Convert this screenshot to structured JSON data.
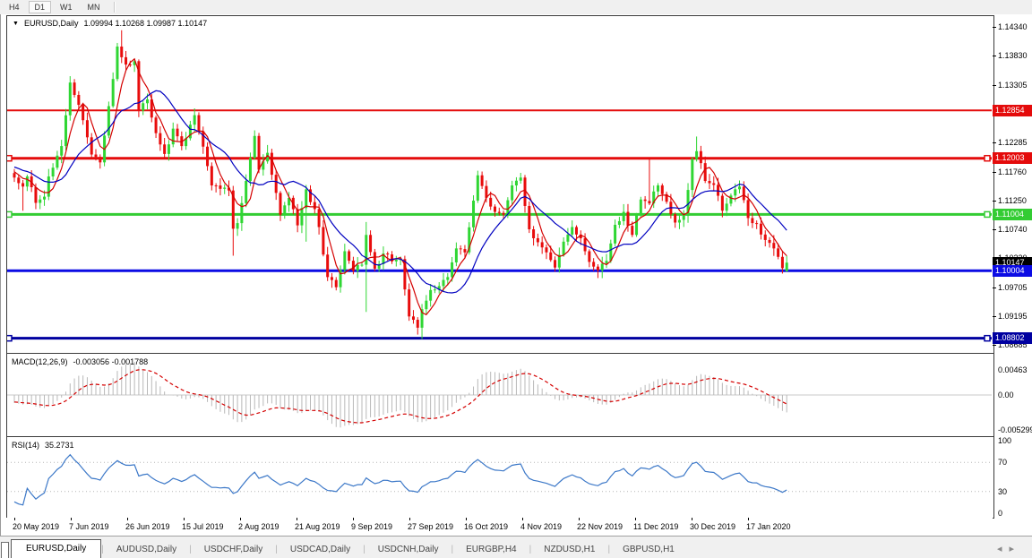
{
  "toolbar": {
    "buttons": [
      "H4",
      "D1",
      "W1",
      "MN"
    ],
    "active": "D1"
  },
  "chart": {
    "title_symbol": "EURUSD,Daily",
    "ohlc_text": "1.09994 1.10268 1.09987 1.10147",
    "dropdown_icon": "▼"
  },
  "price_axis": {
    "ticks": [
      {
        "label": "1.14340",
        "price": 1.1434
      },
      {
        "label": "1.13830",
        "price": 1.1383
      },
      {
        "label": "1.13305",
        "price": 1.13305
      },
      {
        "label": "1.12795",
        "price": 1.12795
      },
      {
        "label": "1.12285",
        "price": 1.12285
      },
      {
        "label": "1.11760",
        "price": 1.1176
      },
      {
        "label": "1.11250",
        "price": 1.1125
      },
      {
        "label": "1.10740",
        "price": 1.1074
      },
      {
        "label": "1.10230",
        "price": 1.1023
      },
      {
        "label": "1.09705",
        "price": 1.09705
      },
      {
        "label": "1.09195",
        "price": 1.09195
      },
      {
        "label": "1.08685",
        "price": 1.08685
      }
    ],
    "badges": [
      {
        "label": "1.12854",
        "price": 1.12854,
        "color": "#e40b0b"
      },
      {
        "label": "1.12003",
        "price": 1.12003,
        "color": "#e40b0b"
      },
      {
        "label": "1.11004",
        "price": 1.11004,
        "color": "#33cc33"
      },
      {
        "label": "1.10147",
        "price": 1.10147,
        "color": "#000000"
      },
      {
        "label": "1.10004",
        "price": 1.10004,
        "color": "#0b0be4"
      },
      {
        "label": "1.08802",
        "price": 1.08802,
        "color": "#0000a0"
      }
    ]
  },
  "indicators": {
    "macd": {
      "label": "MACD(12,26,9)",
      "values": "-0.003056 -0.001788",
      "axis": [
        {
          "label": "0.00463",
          "pos": "top"
        },
        {
          "label": "0.00",
          "pos": "zero"
        },
        {
          "label": "-0.005299",
          "pos": "bottom"
        }
      ]
    },
    "rsi": {
      "label": "RSI(14)",
      "value": "35.2731",
      "axis": [
        {
          "label": "100",
          "v": 100
        },
        {
          "label": "70",
          "v": 70
        },
        {
          "label": "30",
          "v": 30
        },
        {
          "label": "0",
          "v": 0
        }
      ],
      "levels": [
        70,
        30
      ]
    }
  },
  "x_axis": {
    "labels": [
      "20 May 2019",
      "7 Jun 2019",
      "26 Jun 2019",
      "15 Jul 2019",
      "2 Aug 2019",
      "21 Aug 2019",
      "9 Sep 2019",
      "27 Sep 2019",
      "16 Oct 2019",
      "4 Nov 2019",
      "22 Nov 2019",
      "11 Dec 2019",
      "30 Dec 2019",
      "17 Jan 2020"
    ]
  },
  "tabs": {
    "items": [
      "EURUSD,Daily",
      "AUDUSD,Daily",
      "USDCHF,Daily",
      "USDCAD,Daily",
      "USDCNH,Daily",
      "EURGBP,H4",
      "NZDUSD,H1",
      "GBPUSD,H1"
    ],
    "active_index": 0,
    "scroll_left_icon": "◂",
    "scroll_right_icon": "▸"
  },
  "chart_data": {
    "type": "candlestick",
    "symbol": "EURUSD",
    "timeframe": "Daily",
    "bars": 181,
    "last_bar": {
      "open": 1.09994,
      "high": 1.10268,
      "low": 1.09987,
      "close": 1.10147
    },
    "price_range": [
      1.08685,
      1.1434
    ],
    "close_anchors": [
      [
        0,
        1.1166
      ],
      [
        2,
        1.115
      ],
      [
        3,
        1.1168
      ],
      [
        5,
        1.1121
      ],
      [
        7,
        1.1132
      ],
      [
        8,
        1.1168
      ],
      [
        10,
        1.1205
      ],
      [
        11,
        1.1222
      ],
      [
        13,
        1.1335
      ],
      [
        14,
        1.1313
      ],
      [
        16,
        1.1268
      ],
      [
        18,
        1.1207
      ],
      [
        20,
        1.1193
      ],
      [
        22,
        1.1293
      ],
      [
        24,
        1.1399
      ],
      [
        25,
        1.138
      ],
      [
        26,
        1.1367
      ],
      [
        28,
        1.1373
      ],
      [
        29,
        1.1285
      ],
      [
        31,
        1.1305
      ],
      [
        33,
        1.1245
      ],
      [
        35,
        1.1208
      ],
      [
        37,
        1.1253
      ],
      [
        39,
        1.1222
      ],
      [
        41,
        1.126
      ],
      [
        42,
        1.1277
      ],
      [
        44,
        1.1221
      ],
      [
        46,
        1.1152
      ],
      [
        48,
        1.1146
      ],
      [
        50,
        1.1143
      ],
      [
        51,
        1.1075
      ],
      [
        52,
        1.1085
      ],
      [
        54,
        1.116
      ],
      [
        55,
        1.1201
      ],
      [
        56,
        1.124
      ],
      [
        57,
        1.118
      ],
      [
        59,
        1.121
      ],
      [
        60,
        1.1171
      ],
      [
        62,
        1.11
      ],
      [
        64,
        1.113
      ],
      [
        66,
        1.1081
      ],
      [
        68,
        1.1145
      ],
      [
        70,
        1.111
      ],
      [
        71,
        1.1078
      ],
      [
        73,
        1.0989
      ],
      [
        75,
        1.0971
      ],
      [
        77,
        1.1035
      ],
      [
        79,
        1.1
      ],
      [
        81,
        1.1011
      ],
      [
        82,
        1.1064
      ],
      [
        84,
        1.1004
      ],
      [
        86,
        1.1031
      ],
      [
        88,
        1.1017
      ],
      [
        90,
        1.1021
      ],
      [
        92,
        1.0919
      ],
      [
        94,
        1.0899
      ],
      [
        95,
        1.0932
      ],
      [
        97,
        1.0966
      ],
      [
        99,
        1.0973
      ],
      [
        101,
        1.0989
      ],
      [
        103,
        1.104
      ],
      [
        105,
        1.1033
      ],
      [
        107,
        1.1125
      ],
      [
        108,
        1.117
      ],
      [
        110,
        1.113
      ],
      [
        112,
        1.1105
      ],
      [
        114,
        1.11
      ],
      [
        116,
        1.1152
      ],
      [
        118,
        1.1166
      ],
      [
        120,
        1.1074
      ],
      [
        122,
        1.1051
      ],
      [
        124,
        1.1033
      ],
      [
        126,
        1.1006
      ],
      [
        128,
        1.1052
      ],
      [
        130,
        1.1078
      ],
      [
        132,
        1.1058
      ],
      [
        134,
        1.1016
      ],
      [
        136,
        1.1001
      ],
      [
        138,
        1.1018
      ],
      [
        140,
        1.1082
      ],
      [
        142,
        1.1105
      ],
      [
        144,
        1.1064
      ],
      [
        146,
        1.1127
      ],
      [
        148,
        1.112
      ],
      [
        150,
        1.1152
      ],
      [
        152,
        1.1123
      ],
      [
        154,
        1.1086
      ],
      [
        156,
        1.1098
      ],
      [
        158,
        1.1199
      ],
      [
        159,
        1.1213
      ],
      [
        161,
        1.116
      ],
      [
        163,
        1.1153
      ],
      [
        165,
        1.1107
      ],
      [
        167,
        1.1134
      ],
      [
        169,
        1.115
      ],
      [
        171,
        1.1094
      ],
      [
        173,
        1.1084
      ],
      [
        175,
        1.1055
      ],
      [
        177,
        1.104
      ],
      [
        178,
        1.1025
      ],
      [
        179,
        1.1005
      ],
      [
        180,
        1.10147
      ]
    ],
    "wick_overrides": {
      "2": {
        "l": 1.1107
      },
      "25": {
        "h": 1.1428
      },
      "51": {
        "l": 1.1027
      },
      "56": {
        "h": 1.125
      },
      "68": {
        "h": 1.1153,
        "l": 1.1052
      },
      "82": {
        "h": 1.1087,
        "l": 1.0927
      },
      "95": {
        "l": 1.0879
      },
      "148": {
        "h": 1.1199
      },
      "159": {
        "h": 1.1239
      },
      "180": {
        "o": 1.09994,
        "h": 1.10268,
        "l": 1.09987,
        "c": 1.10147
      }
    },
    "horizontal_lines": [
      {
        "price": 1.12854,
        "color": "#e40b0b",
        "width": 2,
        "handles": false
      },
      {
        "price": 1.12003,
        "color": "#e40b0b",
        "width": 3,
        "handles": true
      },
      {
        "price": 1.11004,
        "color": "#33cc33",
        "width": 3,
        "handles": true
      },
      {
        "price": 1.10004,
        "color": "#0b0be4",
        "width": 3,
        "handles": false
      },
      {
        "price": 1.08802,
        "color": "#0000a0",
        "width": 3,
        "handles": true
      }
    ],
    "moving_averages": [
      {
        "period": 5,
        "color": "#d40000",
        "name": "fast"
      },
      {
        "period": 13,
        "color": "#0000c0",
        "name": "slow"
      }
    ],
    "macd": {
      "fast": 12,
      "slow": 26,
      "signal": 9,
      "current_macd": -0.003056,
      "current_signal": -0.001788,
      "axis_max": 0.00463,
      "axis_min": -0.005299,
      "hist_color": "#b8b8b8",
      "signal_color": "#d40000"
    },
    "rsi": {
      "period": 14,
      "current": 35.2731,
      "color": "#3c78c8",
      "levels": [
        70,
        30
      ],
      "range": [
        0,
        100
      ]
    },
    "candle_up_color": "#2fd633",
    "candle_down_color": "#e80c0c"
  }
}
